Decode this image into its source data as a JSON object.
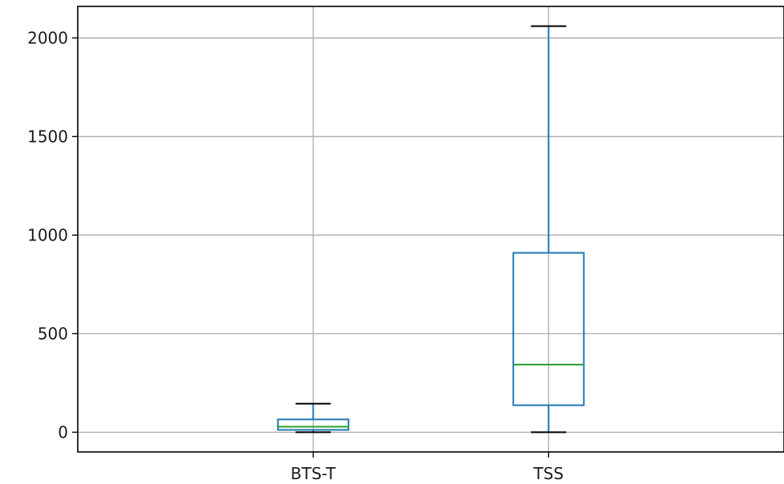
{
  "chart_data": {
    "type": "box",
    "categories": [
      "BTS-T",
      "TSS"
    ],
    "boxes": [
      {
        "label": "BTS-T",
        "whisker_low": 0,
        "q1": 12,
        "median": 28,
        "q3": 65,
        "whisker_high": 145
      },
      {
        "label": "TSS",
        "whisker_low": 0,
        "q1": 137,
        "median": 343,
        "q3": 910,
        "whisker_high": 2060
      }
    ],
    "ylim": [
      -100,
      2160
    ],
    "yticks": [
      0,
      500,
      1000,
      1500,
      2000
    ],
    "ytick_labels": [
      "0",
      "500",
      "1000",
      "1500",
      "2000"
    ],
    "grid": true,
    "colors": {
      "box": "#1f77b4",
      "median": "#2ca02c",
      "cap": "#000000",
      "grid": "#b0b0b0",
      "axis": "#000000"
    }
  }
}
